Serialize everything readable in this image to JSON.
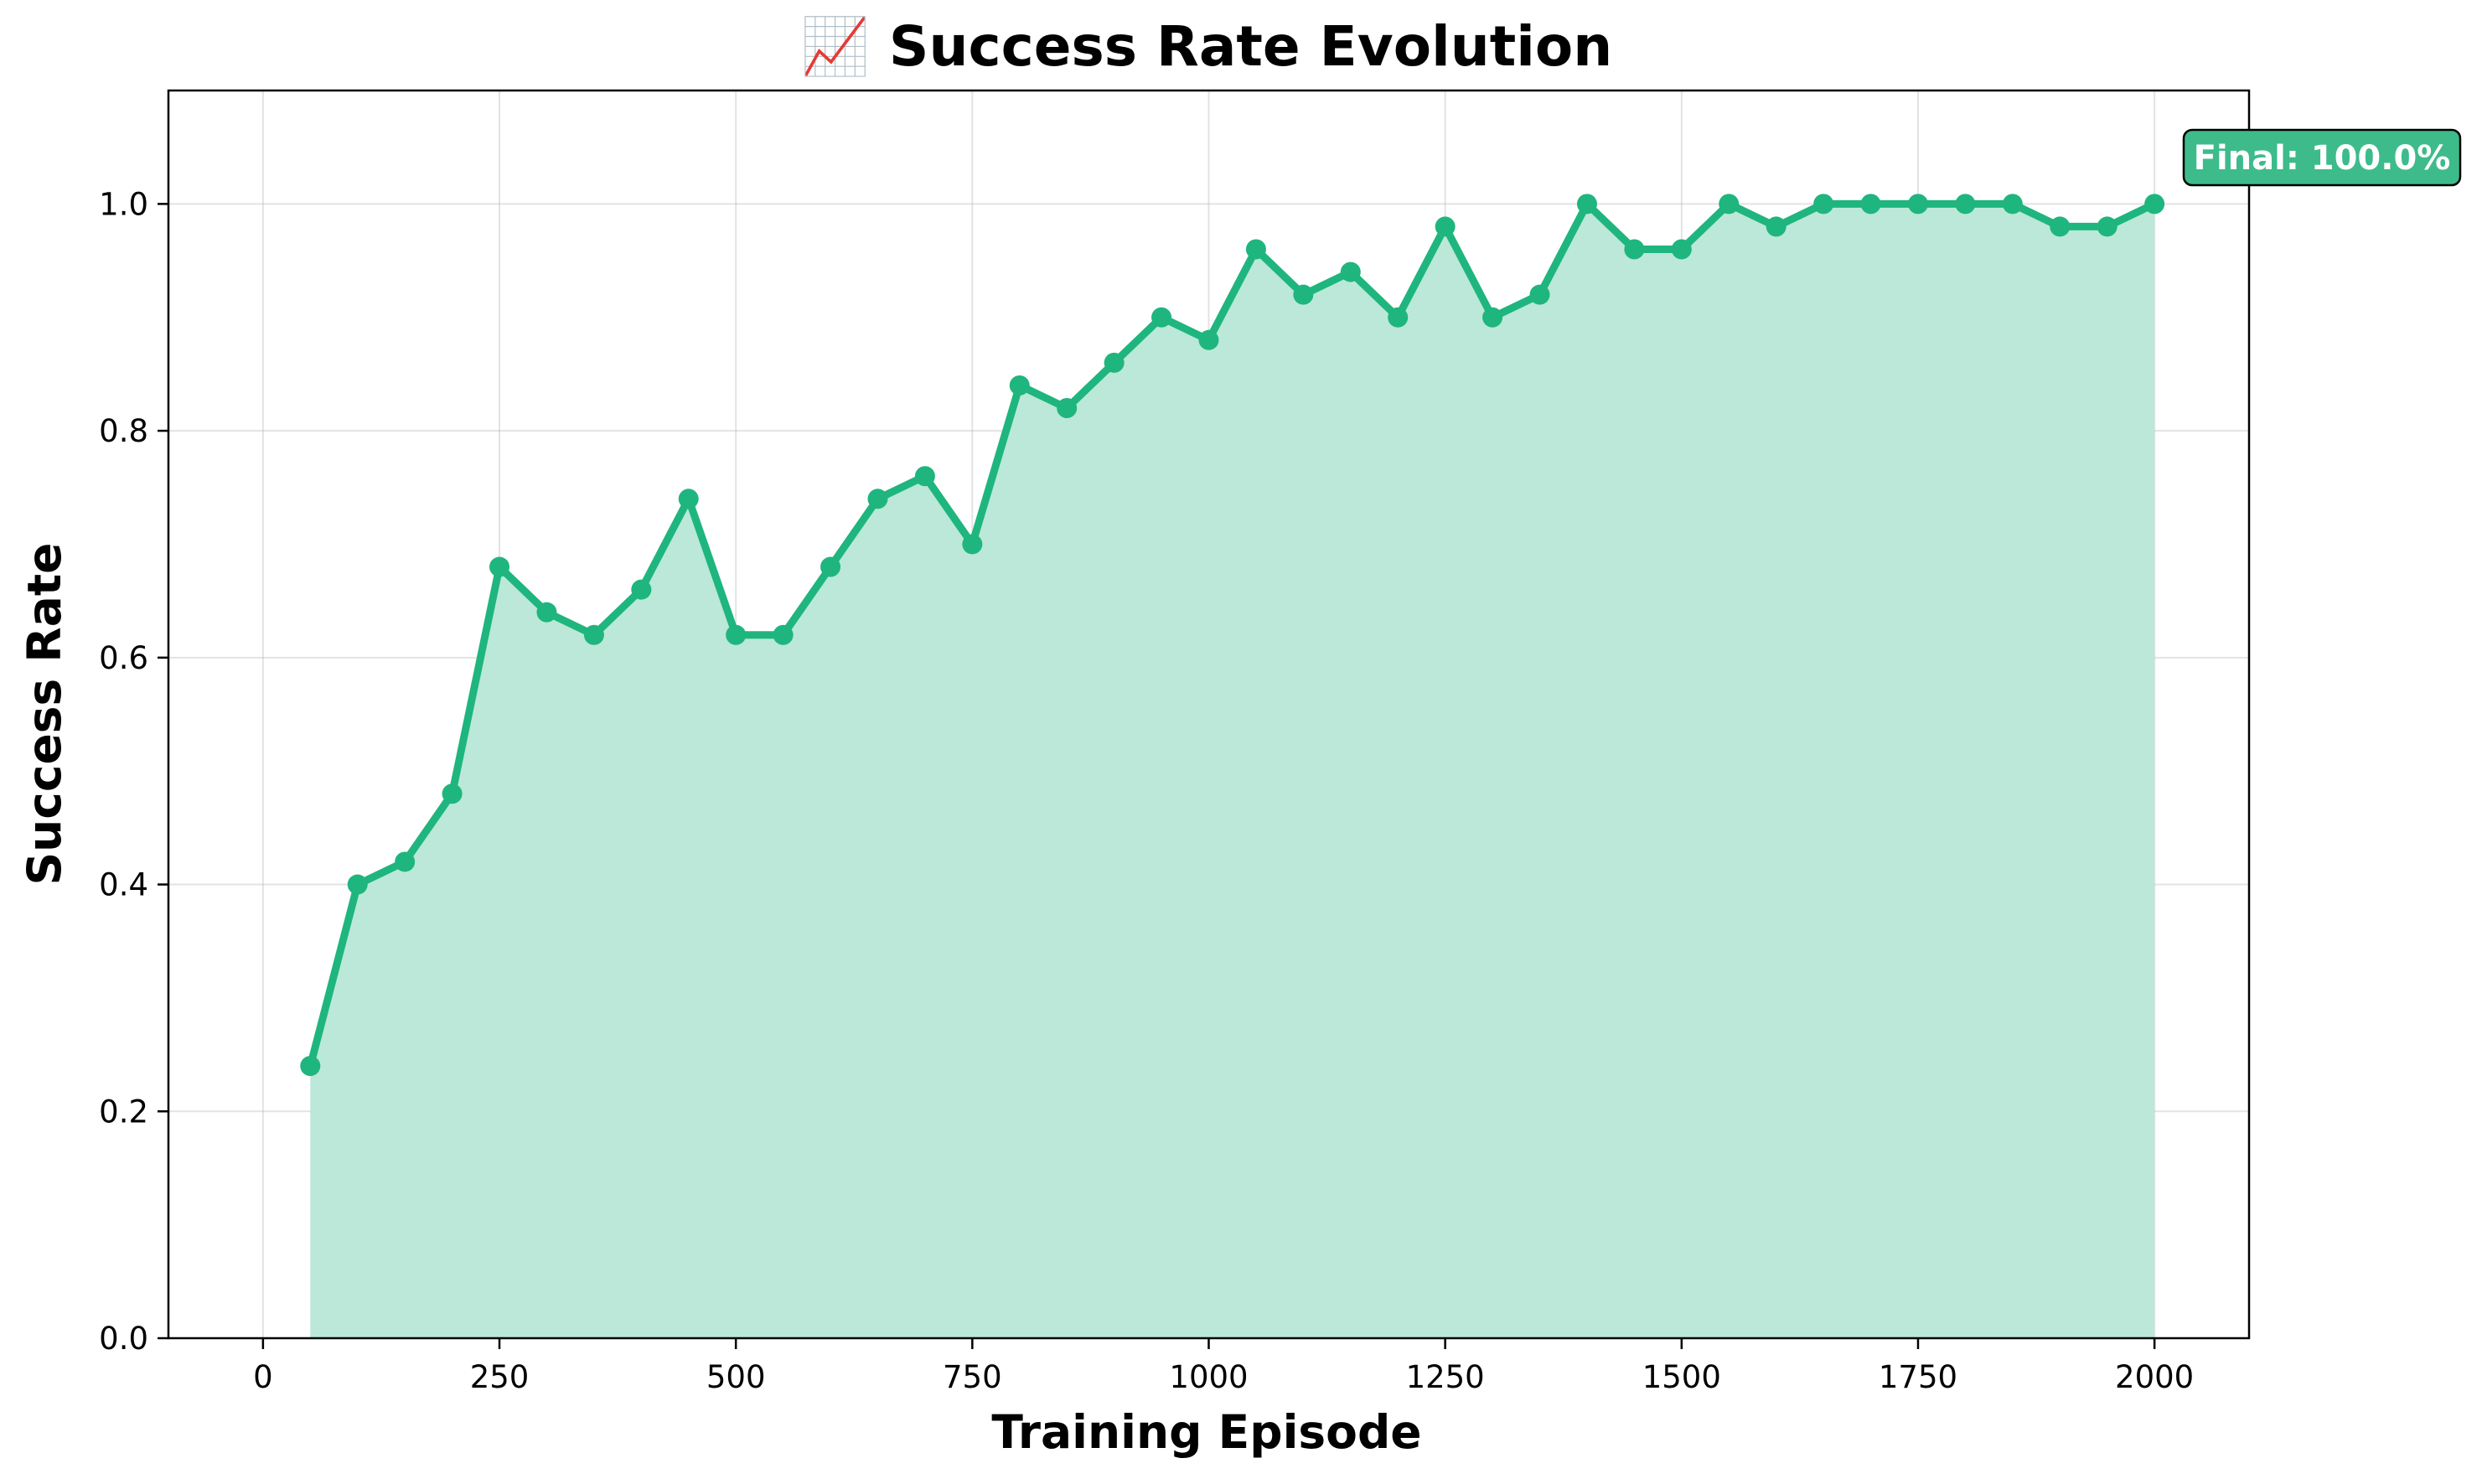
{
  "chart_data": {
    "type": "area",
    "title": "📈 Success Rate Evolution",
    "xlabel": "Training Episode",
    "ylabel": "Success Rate",
    "xlim": [
      -100,
      2100
    ],
    "ylim": [
      0,
      1.1
    ],
    "xticks": [
      0,
      250,
      500,
      750,
      1000,
      1250,
      1500,
      1750,
      2000
    ],
    "yticks": [
      "0.0",
      "0.2",
      "0.4",
      "0.6",
      "0.8",
      "1.0"
    ],
    "grid": true,
    "colors": {
      "line": "#1fb57f",
      "fill": "#bbe8d8",
      "annotation_bg": "#3dbb8b"
    },
    "series": [
      {
        "x": [
          50,
          100,
          150,
          200,
          250,
          300,
          350,
          400,
          450,
          500,
          550,
          600,
          650,
          700,
          750,
          800,
          850,
          900,
          950,
          1000,
          1050,
          1100,
          1150,
          1200,
          1250,
          1300,
          1350,
          1400,
          1450,
          1500,
          1550,
          1600,
          1650,
          1700,
          1750,
          1800,
          1850,
          1900,
          1950,
          2000
        ],
        "values": [
          0.24,
          0.4,
          0.42,
          0.48,
          0.68,
          0.64,
          0.62,
          0.66,
          0.74,
          0.62,
          0.62,
          0.68,
          0.74,
          0.76,
          0.7,
          0.84,
          0.82,
          0.86,
          0.9,
          0.88,
          0.96,
          0.92,
          0.94,
          0.9,
          0.98,
          0.9,
          0.92,
          1.0,
          0.96,
          0.96,
          1.0,
          0.98,
          1.0,
          1.0,
          1.0,
          1.0,
          1.0,
          0.98,
          0.98,
          1.0
        ]
      }
    ],
    "annotation": {
      "text": "Final: 100.0%"
    }
  }
}
